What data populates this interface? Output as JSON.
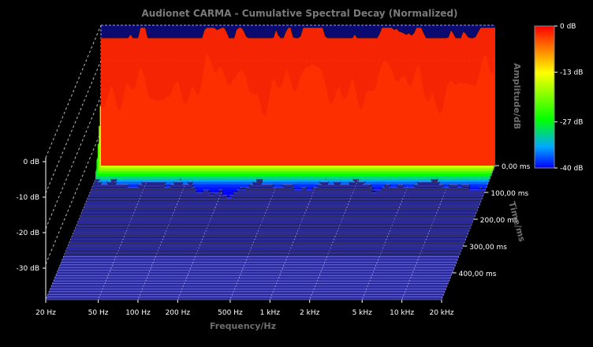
{
  "chart_data": {
    "type": "waterfall-3d",
    "title": "Audionet CARMA - Cumulative Spectral Decay (Normalized)",
    "x_axis": {
      "label": "Frequency/Hz",
      "scale": "log",
      "range": [
        20,
        20000
      ],
      "ticks": [
        {
          "value": 20,
          "label": "20 Hz"
        },
        {
          "value": 50,
          "label": "50 Hz"
        },
        {
          "value": 100,
          "label": "100 Hz"
        },
        {
          "value": 200,
          "label": "200 Hz"
        },
        {
          "value": 500,
          "label": "500 Hz"
        },
        {
          "value": 1000,
          "label": "1 kHz"
        },
        {
          "value": 2000,
          "label": "2 kHz"
        },
        {
          "value": 5000,
          "label": "5 kHz"
        },
        {
          "value": 10000,
          "label": "10 kHz"
        },
        {
          "value": 20000,
          "label": "20 kHz"
        }
      ]
    },
    "y_axis": {
      "label": "",
      "range": [
        -40,
        0
      ],
      "ticks": [
        {
          "value": 0,
          "label": "0 dB"
        },
        {
          "value": -10,
          "label": "-10 dB"
        },
        {
          "value": -20,
          "label": "-20 dB"
        },
        {
          "value": -30,
          "label": "-30 dB"
        }
      ]
    },
    "z_axis": {
      "label": "Time/ms",
      "range": [
        0,
        500
      ],
      "ticks": [
        {
          "value": 0,
          "label": "0,00 ms"
        },
        {
          "value": 100,
          "label": "100,00 ms"
        },
        {
          "value": 200,
          "label": "200,00 ms"
        },
        {
          "value": 300,
          "label": "300,00 ms"
        },
        {
          "value": 400,
          "label": "400,00 ms"
        }
      ]
    },
    "color_scale": {
      "label": "Amplitude/dB",
      "range": [
        -40,
        0
      ],
      "ticks": [
        {
          "value": 0,
          "label": "0 dB"
        },
        {
          "value": -13,
          "label": "-13 dB"
        },
        {
          "value": -27,
          "label": "-27 dB"
        },
        {
          "value": -40,
          "label": "-40 dB"
        }
      ],
      "stops": [
        "#ff0000",
        "#ff8c00",
        "#ffff00",
        "#00ff00",
        "#00aaff",
        "#0000ff"
      ]
    },
    "base_color": "#2020a0",
    "grid_color": "#8888ff",
    "background": "#000000"
  }
}
